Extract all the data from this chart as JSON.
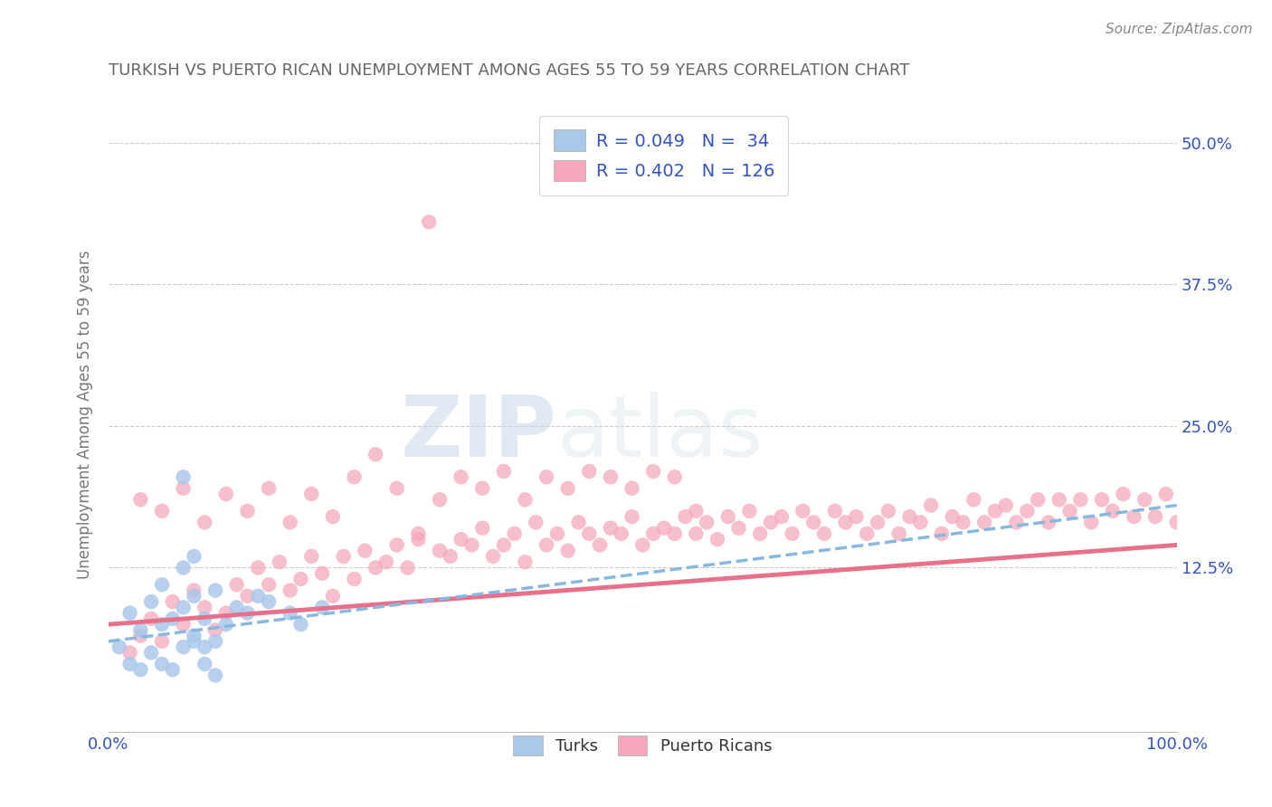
{
  "title": "TURKISH VS PUERTO RICAN UNEMPLOYMENT AMONG AGES 55 TO 59 YEARS CORRELATION CHART",
  "source": "Source: ZipAtlas.com",
  "ylabel": "Unemployment Among Ages 55 to 59 years",
  "xlim": [
    0,
    100
  ],
  "ylim": [
    -2,
    54
  ],
  "ytick_labels": [
    "12.5%",
    "25.0%",
    "37.5%",
    "50.0%"
  ],
  "ytick_values": [
    12.5,
    25.0,
    37.5,
    50.0
  ],
  "xtick_labels": [
    "0.0%",
    "100.0%"
  ],
  "xtick_values": [
    0,
    100
  ],
  "grid_color": "#cccccc",
  "background_color": "#ffffff",
  "turks_color": "#aac8ea",
  "puerto_ricans_color": "#f5a8bb",
  "turks_line_color": "#88b8e0",
  "puerto_ricans_line_color": "#e8708a",
  "turks_R": 0.049,
  "turks_N": 34,
  "puerto_ricans_R": 0.402,
  "puerto_ricans_N": 126,
  "legend_label_color": "#3355bb",
  "title_color": "#666666",
  "watermark_zip": "ZIP",
  "watermark_atlas": "atlas",
  "turks_x": [
    1,
    2,
    2,
    3,
    3,
    4,
    4,
    5,
    5,
    5,
    6,
    6,
    7,
    7,
    7,
    8,
    8,
    8,
    9,
    9,
    10,
    10,
    11,
    12,
    13,
    14,
    15,
    17,
    18,
    20,
    7,
    8,
    9,
    10
  ],
  "turks_y": [
    5.5,
    4.0,
    8.5,
    3.5,
    7.0,
    5.0,
    9.5,
    4.0,
    7.5,
    11.0,
    3.5,
    8.0,
    5.5,
    9.0,
    12.5,
    6.0,
    10.0,
    13.5,
    4.0,
    8.0,
    6.0,
    10.5,
    7.5,
    9.0,
    8.5,
    10.0,
    9.5,
    8.5,
    7.5,
    9.0,
    20.5,
    6.5,
    5.5,
    3.0
  ],
  "pr_x": [
    2,
    3,
    4,
    5,
    6,
    7,
    8,
    9,
    10,
    11,
    12,
    13,
    14,
    15,
    16,
    17,
    18,
    19,
    20,
    21,
    22,
    23,
    24,
    25,
    26,
    27,
    28,
    29,
    30,
    31,
    32,
    33,
    34,
    35,
    36,
    37,
    38,
    39,
    40,
    41,
    42,
    43,
    44,
    45,
    46,
    47,
    48,
    49,
    50,
    51,
    52,
    53,
    54,
    55,
    56,
    57,
    58,
    59,
    60,
    61,
    62,
    63,
    64,
    65,
    66,
    67,
    68,
    69,
    70,
    71,
    72,
    73,
    74,
    75,
    76,
    77,
    78,
    79,
    80,
    81,
    82,
    83,
    84,
    85,
    86,
    87,
    88,
    89,
    90,
    91,
    92,
    93,
    94,
    95,
    96,
    97,
    98,
    99,
    100,
    3,
    5,
    7,
    9,
    11,
    13,
    15,
    17,
    19,
    21,
    23,
    25,
    27,
    29,
    31,
    33,
    35,
    37,
    39,
    41,
    43,
    45,
    47,
    49,
    51,
    53,
    55
  ],
  "pr_y": [
    5.0,
    6.5,
    8.0,
    6.0,
    9.5,
    7.5,
    10.5,
    9.0,
    7.0,
    8.5,
    11.0,
    10.0,
    12.5,
    11.0,
    13.0,
    10.5,
    11.5,
    13.5,
    12.0,
    10.0,
    13.5,
    11.5,
    14.0,
    12.5,
    13.0,
    14.5,
    12.5,
    15.0,
    43.0,
    14.0,
    13.5,
    15.0,
    14.5,
    16.0,
    13.5,
    14.5,
    15.5,
    13.0,
    16.5,
    14.5,
    15.5,
    14.0,
    16.5,
    15.5,
    14.5,
    16.0,
    15.5,
    17.0,
    14.5,
    15.5,
    16.0,
    15.5,
    17.0,
    15.5,
    16.5,
    15.0,
    17.0,
    16.0,
    17.5,
    15.5,
    16.5,
    17.0,
    15.5,
    17.5,
    16.5,
    15.5,
    17.5,
    16.5,
    17.0,
    15.5,
    16.5,
    17.5,
    15.5,
    17.0,
    16.5,
    18.0,
    15.5,
    17.0,
    16.5,
    18.5,
    16.5,
    17.5,
    18.0,
    16.5,
    17.5,
    18.5,
    16.5,
    18.5,
    17.5,
    18.5,
    16.5,
    18.5,
    17.5,
    19.0,
    17.0,
    18.5,
    17.0,
    19.0,
    16.5,
    18.5,
    17.5,
    19.5,
    16.5,
    19.0,
    17.5,
    19.5,
    16.5,
    19.0,
    17.0,
    20.5,
    22.5,
    19.5,
    15.5,
    18.5,
    20.5,
    19.5,
    21.0,
    18.5,
    20.5,
    19.5,
    21.0,
    20.5,
    19.5,
    21.0,
    20.5,
    17.5
  ],
  "turks_line_x0": 0,
  "turks_line_y0": 6.0,
  "turks_line_x1": 100,
  "turks_line_y1": 18.0,
  "pr_line_x0": 0,
  "pr_line_y0": 7.5,
  "pr_line_x1": 100,
  "pr_line_y1": 14.5
}
